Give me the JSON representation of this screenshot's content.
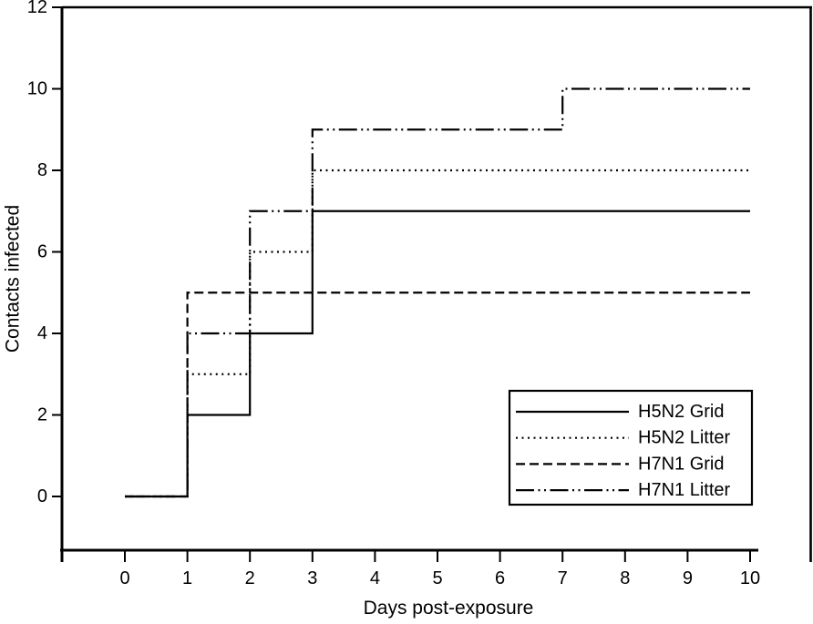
{
  "chart_data": {
    "type": "line",
    "subtype": "step-post",
    "title": "",
    "xlabel": "Days post-exposure",
    "ylabel": "Contacts infected",
    "xlim": [
      0,
      10
    ],
    "ylim": [
      0,
      12
    ],
    "xticks": [
      0,
      1,
      2,
      3,
      4,
      5,
      6,
      7,
      8,
      9,
      10
    ],
    "yticks": [
      0,
      2,
      4,
      6,
      8,
      10,
      12
    ],
    "grid": false,
    "background_color": "#ffffff",
    "line_color": "#000000",
    "series": [
      {
        "name": "H5N2 Grid",
        "style": "solid",
        "x": [
          0,
          1,
          2,
          3,
          10
        ],
        "y": [
          0,
          2,
          4,
          7,
          7
        ]
      },
      {
        "name": "H5N2 Litter",
        "style": "dotted",
        "x": [
          0,
          1,
          2,
          3,
          10
        ],
        "y": [
          0,
          3,
          6,
          8,
          8
        ]
      },
      {
        "name": "H7N1 Grid",
        "style": "dashed",
        "x": [
          0,
          1,
          10
        ],
        "y": [
          0,
          5,
          5
        ]
      },
      {
        "name": "H7N1 Litter",
        "style": "dash-dot-dot",
        "x": [
          0,
          1,
          2,
          3,
          7,
          10
        ],
        "y": [
          0,
          4,
          7,
          9,
          10,
          10
        ]
      }
    ],
    "legend": {
      "position": "lower-right",
      "entries": [
        "H5N2 Grid",
        "H5N2 Litter",
        "H7N1 Grid",
        "H7N1 Litter"
      ]
    }
  }
}
